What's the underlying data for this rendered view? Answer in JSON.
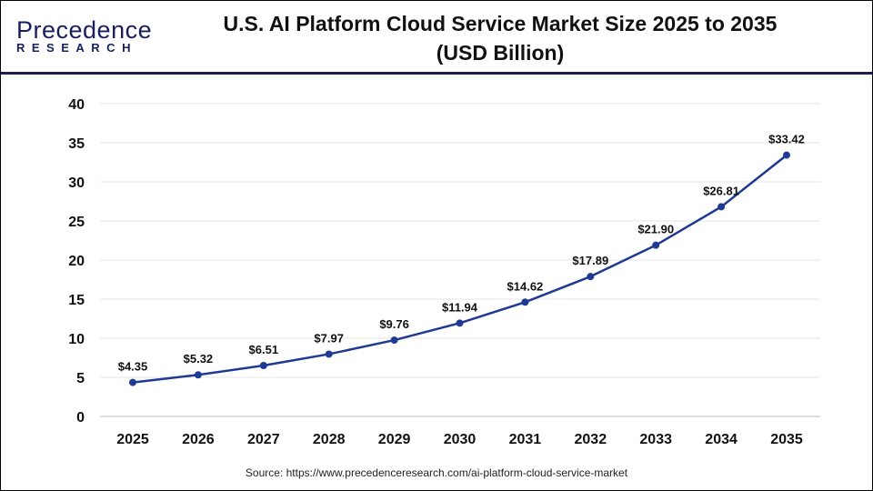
{
  "logo": {
    "text_main": "Precedence",
    "text_sub": "RESEARCH"
  },
  "title_line1": "U.S. AI Platform Cloud Service Market Size 2025 to 2035",
  "title_line2": "(USD Billion)",
  "source": "Source: https://www.precedenceresearch.com/ai-platform-cloud-service-market",
  "colors": {
    "line": "#1f3a93",
    "header_rule": "#1a1f4e",
    "grid": "#e6e6e6"
  },
  "chart_data": {
    "type": "line",
    "title": "U.S. AI Platform Cloud Service Market Size 2025 to 2035 (USD Billion)",
    "xlabel": "",
    "ylabel": "",
    "x": [
      "2025",
      "2026",
      "2027",
      "2028",
      "2029",
      "2030",
      "2031",
      "2032",
      "2033",
      "2034",
      "2035"
    ],
    "values": [
      4.35,
      5.32,
      6.51,
      7.97,
      9.76,
      11.94,
      14.62,
      17.89,
      21.9,
      26.81,
      33.42
    ],
    "data_labels": [
      "$4.35",
      "$5.32",
      "$6.51",
      "$7.97",
      "$9.76",
      "$11.94",
      "$14.62",
      "$17.89",
      "$21.90",
      "$26.81",
      "$33.42"
    ],
    "ylim": [
      0,
      40
    ],
    "yticks": [
      0,
      5,
      10,
      15,
      20,
      25,
      30,
      35,
      40
    ],
    "grid": true,
    "legend": "none"
  }
}
